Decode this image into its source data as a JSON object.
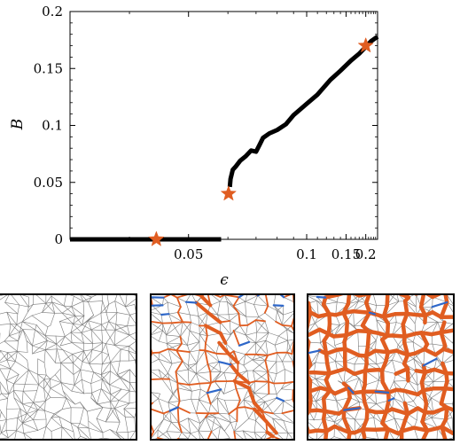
{
  "chart_data": {
    "type": "line",
    "title": "",
    "xlabel": "ϵ",
    "ylabel": "B",
    "x_scale": "reciprocal",
    "xlim": [
      0.0333,
      0.25
    ],
    "ylim": [
      0,
      0.2
    ],
    "xticks": [
      0.05,
      0.1,
      0.15,
      0.2
    ],
    "xtick_labels": [
      "0.05",
      "0.1",
      "0.15",
      "0.2"
    ],
    "yticks": [
      0,
      0.05,
      0.1,
      0.15,
      0.2
    ],
    "ytick_labels": [
      "0",
      "0.05",
      "0.1",
      "0.15",
      "0.2"
    ],
    "grid": false,
    "legend": "none",
    "series": [
      {
        "color": "#000000",
        "segments": [
          {
            "x": [
              0.0333,
              0.058
            ],
            "y": [
              0.0,
              0.0
            ]
          },
          {
            "x": [
              0.0606,
              0.0608,
              0.0615,
              0.0625,
              0.064,
              0.066,
              0.068,
              0.07,
              0.0715,
              0.073,
              0.076,
              0.08,
              0.085,
              0.09,
              0.1,
              0.11,
              0.125,
              0.14,
              0.16,
              0.18,
              0.2,
              0.22,
              0.25
            ],
            "y": [
              0.046,
              0.053,
              0.061,
              0.064,
              0.069,
              0.073,
              0.078,
              0.077,
              0.083,
              0.089,
              0.093,
              0.096,
              0.101,
              0.109,
              0.119,
              0.127,
              0.14,
              0.148,
              0.157,
              0.163,
              0.169,
              0.174,
              0.178
            ]
          }
        ]
      }
    ],
    "markers": [
      {
        "x": 0.044,
        "y": 0.0,
        "shape": "star",
        "color": "#e05d21"
      },
      {
        "x": 0.0602,
        "y": 0.04,
        "shape": "star",
        "color": "#e05d21"
      },
      {
        "x": 0.2,
        "y": 0.17,
        "shape": "star",
        "color": "#e05d21"
      }
    ]
  },
  "panels": [
    {
      "name": "network-panel-left",
      "state": "no-shear-bands",
      "colors": {
        "edges": "#7a7a7a"
      }
    },
    {
      "name": "network-panel-middle",
      "state": "onset",
      "colors": {
        "edges": "#7a7a7a",
        "band": "#e05d21",
        "accent": "#2e67c9"
      }
    },
    {
      "name": "network-panel-right",
      "state": "developed",
      "colors": {
        "edges": "#7a7a7a",
        "band": "#e05d21",
        "accent": "#2e67c9"
      }
    }
  ]
}
